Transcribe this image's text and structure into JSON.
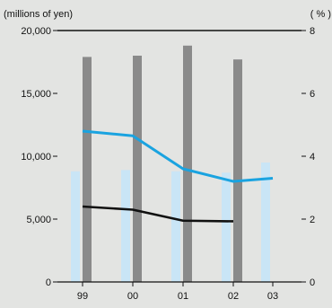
{
  "chart_data": {
    "type": "bar",
    "categories": [
      "99",
      "00",
      "01",
      "02",
      "03"
    ],
    "y_left": {
      "unit_label": "(millions of yen)",
      "ylim": [
        0,
        20000
      ],
      "ticks": [
        0,
        5000,
        10000,
        15000,
        20000
      ],
      "tick_labels": [
        "0",
        "5,000",
        "10,000",
        "15,000",
        "20,000"
      ]
    },
    "y_right": {
      "unit_label": "( % )",
      "ylim": [
        0,
        8
      ],
      "ticks": [
        0,
        2,
        4,
        6,
        8
      ],
      "tick_labels": [
        "0",
        "2",
        "4",
        "6",
        "8"
      ]
    },
    "series": [
      {
        "type": "bar",
        "axis": "left",
        "color": "#c9e5f6",
        "values": [
          8800,
          8900,
          8800,
          8700,
          9500
        ]
      },
      {
        "type": "bar",
        "axis": "left",
        "color": "#8a8a8a",
        "values": [
          17900,
          18000,
          18800,
          17700,
          null
        ]
      },
      {
        "type": "line",
        "axis": "right",
        "color": "#1aa3e0",
        "values": [
          4.8,
          4.65,
          3.6,
          3.2,
          3.3
        ]
      },
      {
        "type": "line",
        "axis": "right",
        "color": "#111111",
        "values": [
          2.4,
          2.3,
          1.95,
          1.93,
          null
        ]
      }
    ],
    "grid": false,
    "legend": "none"
  }
}
